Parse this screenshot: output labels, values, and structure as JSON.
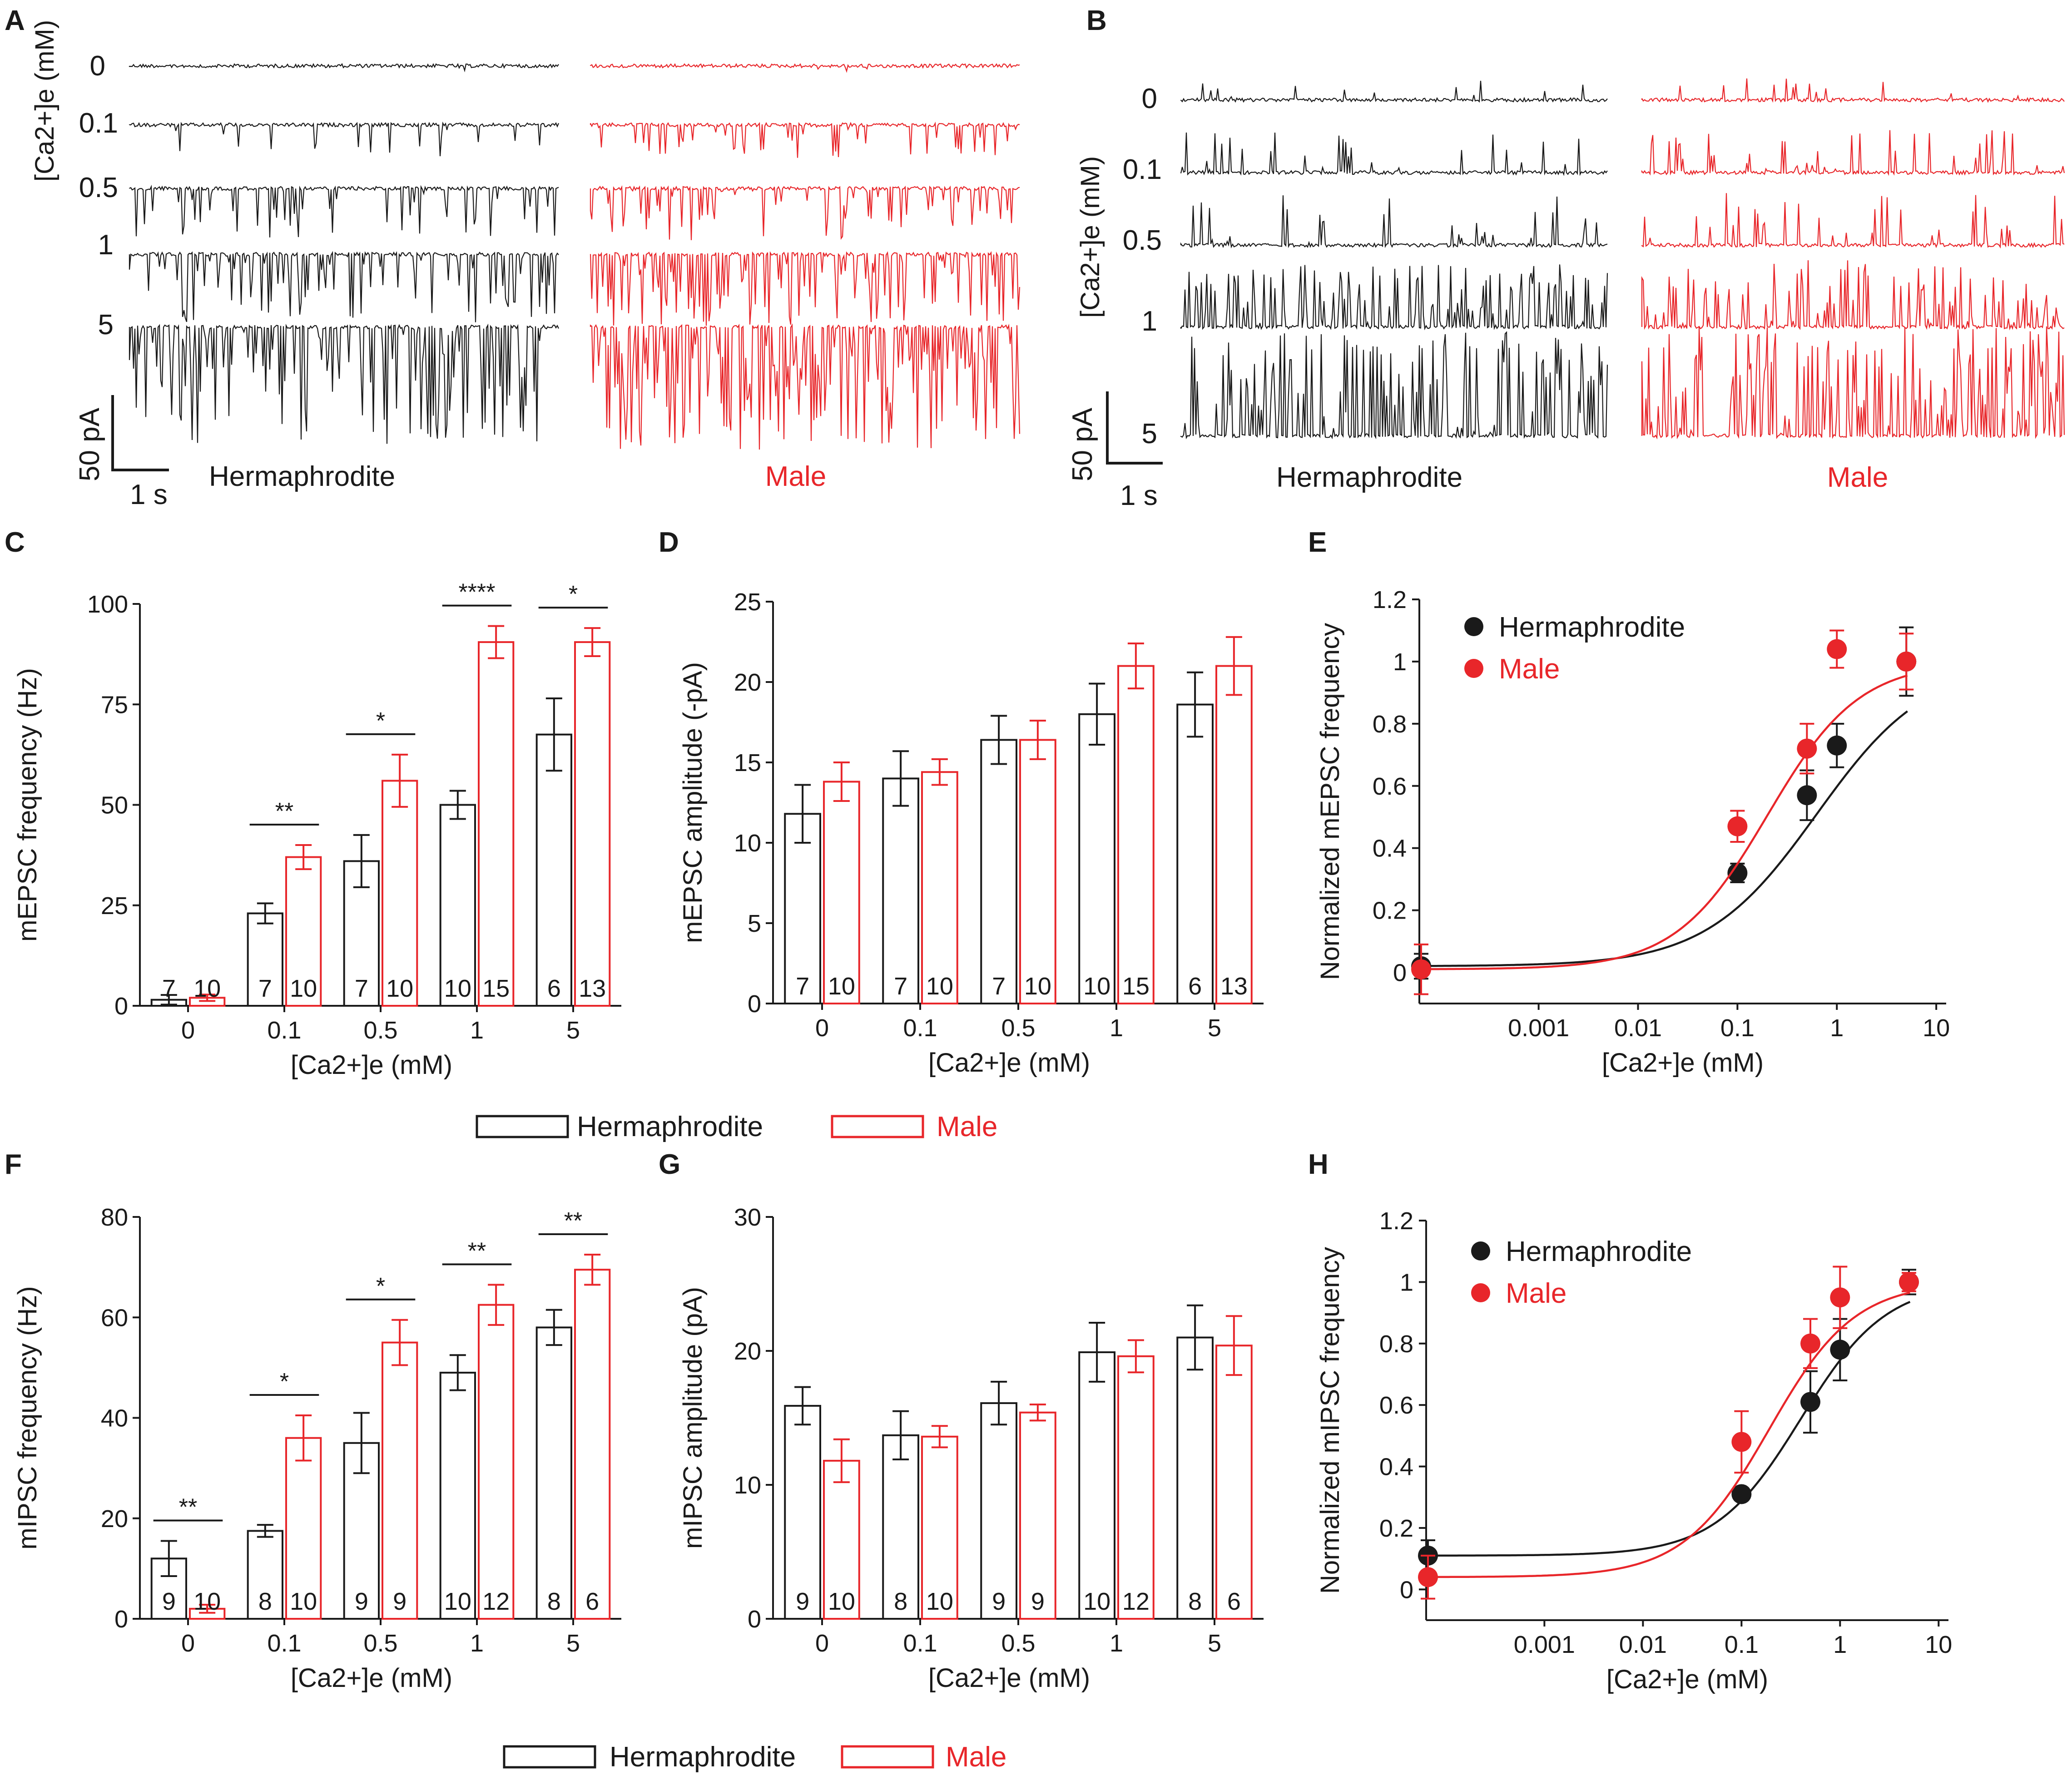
{
  "colors": {
    "hermaphrodite": "#1a1a1a",
    "male": "#e8262a"
  },
  "panels": {
    "A": {
      "label": "A",
      "ylabel": "[Ca2+]e (mM)",
      "traces": [
        "0",
        "0.1",
        "0.5",
        "1",
        "5"
      ],
      "scale_y": "50 pA",
      "scale_x": "1 s",
      "left_title": "Hermaphrodite",
      "right_title": "Male"
    },
    "B": {
      "label": "B",
      "ylabel": "[Ca2+]e (mM)",
      "traces": [
        "0",
        "0.1",
        "0.5",
        "1",
        "5"
      ],
      "scale_y": "50 pA",
      "scale_x": "1 s",
      "left_title": "Hermaphrodite",
      "right_title": "Male"
    },
    "legend_cd": {
      "herm": "Hermaphrodite",
      "male": "Male"
    },
    "legend_fg": {
      "herm": "Hermaphrodite",
      "male": "Male"
    }
  },
  "chart_data": [
    {
      "id": "C",
      "label": "C",
      "type": "bar",
      "title": "",
      "ylabel": "mEPSC frequency (Hz)",
      "xlabel": "[Ca2+]e (mM)",
      "categories": [
        "0",
        "0.1",
        "0.5",
        "1",
        "5"
      ],
      "ylim": [
        0,
        100
      ],
      "yticks": [
        0,
        25,
        50,
        75,
        100
      ],
      "series": [
        {
          "name": "Hermaphrodite",
          "values": [
            1.5,
            23,
            36,
            50,
            67.5
          ],
          "errors": [
            1.2,
            2.5,
            6.5,
            3.5,
            9
          ],
          "n": [
            "7",
            "7",
            "7",
            "10",
            "6"
          ]
        },
        {
          "name": "Male",
          "values": [
            2,
            37,
            56,
            90.5,
            90.5
          ],
          "errors": [
            0.8,
            3,
            6.5,
            4,
            3.5
          ],
          "n": [
            "10",
            "10",
            "10",
            "15",
            "13"
          ]
        }
      ],
      "significance": [
        "",
        "**",
        "*",
        "****",
        "*"
      ]
    },
    {
      "id": "D",
      "label": "D",
      "type": "bar",
      "title": "",
      "ylabel": "mEPSC amplitude (-pA)",
      "xlabel": "[Ca2+]e (mM)",
      "categories": [
        "0",
        "0.1",
        "0.5",
        "1",
        "5"
      ],
      "ylim": [
        0,
        25
      ],
      "yticks": [
        0,
        5,
        10,
        15,
        20,
        25
      ],
      "series": [
        {
          "name": "Hermaphrodite",
          "values": [
            11.8,
            14,
            16.4,
            18,
            18.6
          ],
          "errors": [
            1.8,
            1.7,
            1.5,
            1.9,
            2
          ],
          "n": [
            "7",
            "7",
            "7",
            "10",
            "6"
          ]
        },
        {
          "name": "Male",
          "values": [
            13.8,
            14.4,
            16.4,
            21,
            21
          ],
          "errors": [
            1.2,
            0.8,
            1.2,
            1.4,
            1.8
          ],
          "n": [
            "10",
            "10",
            "10",
            "15",
            "13"
          ]
        }
      ],
      "significance": [
        "",
        "",
        "",
        "",
        ""
      ]
    },
    {
      "id": "E",
      "label": "E",
      "type": "scatter",
      "title": "",
      "ylabel": "Normalized mEPSC frequency",
      "xlabel": "[Ca2+]e (mM)",
      "xscale": "log",
      "xticks": [
        "0.001",
        "0.01",
        "0.1",
        "1",
        "10"
      ],
      "ylim": [
        -0.1,
        1.2
      ],
      "yticks": [
        "0",
        "0.2",
        "0.4",
        "0.6",
        "0.8",
        "1",
        "1.2"
      ],
      "series": [
        {
          "name": "Hermaphrodite",
          "x": [
            0,
            0.1,
            0.5,
            1,
            5
          ],
          "y": [
            0.02,
            0.32,
            0.57,
            0.73,
            1.0
          ],
          "errors": [
            0.04,
            0.03,
            0.08,
            0.07,
            0.11
          ],
          "fit_ec50": 0.63,
          "fit_hill": 0.78
        },
        {
          "name": "Male",
          "x": [
            0,
            0.1,
            0.5,
            1,
            5
          ],
          "y": [
            0.01,
            0.47,
            0.72,
            1.04,
            1.0
          ],
          "errors": [
            0.08,
            0.05,
            0.08,
            0.06,
            0.09
          ],
          "fit_ec50": 0.2,
          "fit_hill": 0.94
        }
      ],
      "legend": [
        "Hermaphrodite",
        "Male"
      ]
    },
    {
      "id": "F",
      "label": "F",
      "type": "bar",
      "title": "",
      "ylabel": "mIPSC frequency (Hz)",
      "xlabel": "[Ca2+]e (mM)",
      "categories": [
        "0",
        "0.1",
        "0.5",
        "1",
        "5"
      ],
      "ylim": [
        0,
        80
      ],
      "yticks": [
        0,
        20,
        40,
        60,
        80
      ],
      "series": [
        {
          "name": "Hermaphrodite",
          "values": [
            12,
            17.5,
            35,
            49,
            58
          ],
          "errors": [
            3.5,
            1.2,
            6,
            3.5,
            3.5
          ],
          "n": [
            "9",
            "8",
            "9",
            "10",
            "8"
          ]
        },
        {
          "name": "Male",
          "values": [
            2,
            36,
            55,
            62.5,
            69.5
          ],
          "errors": [
            0.8,
            4.5,
            4.5,
            4,
            3
          ],
          "n": [
            "10",
            "10",
            "9",
            "12",
            "6"
          ]
        }
      ],
      "significance": [
        "**",
        "*",
        "*",
        "**",
        "**"
      ]
    },
    {
      "id": "G",
      "label": "G",
      "type": "bar",
      "title": "",
      "ylabel": "mIPSC amplitude (pA)",
      "xlabel": "[Ca2+]e (mM)",
      "categories": [
        "0",
        "0.1",
        "0.5",
        "1",
        "5"
      ],
      "ylim": [
        0,
        30
      ],
      "yticks": [
        0,
        10,
        20,
        30
      ],
      "series": [
        {
          "name": "Hermaphrodite",
          "values": [
            15.9,
            13.7,
            16.1,
            19.9,
            21
          ],
          "errors": [
            1.4,
            1.8,
            1.6,
            2.2,
            2.4
          ],
          "n": [
            "9",
            "8",
            "9",
            "10",
            "8"
          ]
        },
        {
          "name": "Male",
          "values": [
            11.8,
            13.6,
            15.4,
            19.6,
            20.4
          ],
          "errors": [
            1.6,
            0.8,
            0.6,
            1.2,
            2.2
          ],
          "n": [
            "10",
            "10",
            "9",
            "12",
            "6"
          ]
        }
      ],
      "significance": [
        "",
        "",
        "",
        "",
        ""
      ]
    },
    {
      "id": "H",
      "label": "H",
      "type": "scatter",
      "title": "",
      "ylabel": "Normalized mIPSC frequency",
      "xlabel": "[Ca2+]e (mM)",
      "xscale": "log",
      "xticks": [
        "0.001",
        "0.01",
        "0.1",
        "1",
        "10"
      ],
      "ylim": [
        -0.1,
        1.2
      ],
      "yticks": [
        "0",
        "0.2",
        "0.4",
        "0.6",
        "0.8",
        "1",
        "1.2"
      ],
      "series": [
        {
          "name": "Hermaphrodite",
          "x": [
            0,
            0.1,
            0.5,
            1,
            5
          ],
          "y": [
            0.11,
            0.31,
            0.61,
            0.78,
            1.0
          ],
          "errors": [
            0.05,
            0.02,
            0.1,
            0.1,
            0.04
          ],
          "fit_ec50": 0.4,
          "fit_hill": 1.0
        },
        {
          "name": "Male",
          "x": [
            0,
            0.1,
            0.5,
            1,
            5
          ],
          "y": [
            0.04,
            0.48,
            0.8,
            0.95,
            1.0
          ],
          "errors": [
            0.07,
            0.1,
            0.08,
            0.1,
            0.03
          ],
          "fit_ec50": 0.19,
          "fit_hill": 1.0
        }
      ],
      "legend": [
        "Hermaphrodite",
        "Male"
      ]
    }
  ]
}
